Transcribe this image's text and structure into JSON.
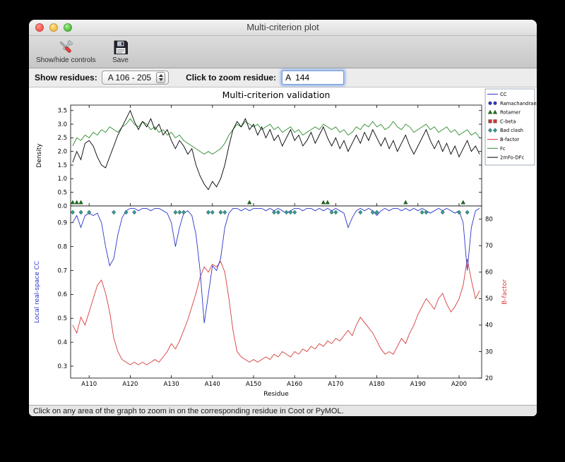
{
  "window": {
    "title": "Multi-criterion plot"
  },
  "toolbar": {
    "show_hide_label": "Show/hide controls",
    "save_label": "Save"
  },
  "controls": {
    "show_residues_label": "Show residues:",
    "range_value": "A 106 - 205",
    "zoom_label": "Click to zoom residue:",
    "zoom_value": "A  144"
  },
  "statusbar": {
    "text": "Click on any area of the graph to zoom in on the corresponding residue in Coot or PyMOL."
  },
  "colors": {
    "focus_ring": "#6f9fe8",
    "cc_line": "#2a35c8",
    "bfactor_line": "#d93b3b",
    "fc_line": "#2e8b2e",
    "map_line": "#000000",
    "clash_marker": "#2e9e96",
    "rotamer_marker": "#117711"
  },
  "chart_data": {
    "type": "line",
    "title": "Multi-criterion validation",
    "xlabel": "Residue",
    "x_start": 106,
    "xlim": [
      105.5,
      205.5
    ],
    "x_ticks": [
      "A110",
      "A120",
      "A130",
      "A140",
      "A150",
      "A160",
      "A170",
      "A180",
      "A190",
      "A200"
    ],
    "x_tick_values": [
      110,
      120,
      130,
      140,
      150,
      160,
      170,
      180,
      190,
      200
    ],
    "top_panel": {
      "ylabel": "Density",
      "ylim": [
        0.0,
        3.7
      ],
      "yticks": [
        0.0,
        0.5,
        1.0,
        1.5,
        2.0,
        2.5,
        3.0,
        3.5
      ],
      "series": [
        {
          "name": "Fc",
          "color": "#2e8b2e",
          "values": [
            2.2,
            2.5,
            2.4,
            2.6,
            2.5,
            2.7,
            2.6,
            2.8,
            2.7,
            2.9,
            2.8,
            2.7,
            2.9,
            3.0,
            3.2,
            3.0,
            2.9,
            3.1,
            3.0,
            2.8,
            2.9,
            2.7,
            2.8,
            2.6,
            2.7,
            2.5,
            2.6,
            2.4,
            2.3,
            2.2,
            2.1,
            2.0,
            1.9,
            2.0,
            1.9,
            2.0,
            2.1,
            2.3,
            2.6,
            2.8,
            3.0,
            2.9,
            3.1,
            3.0,
            2.9,
            3.0,
            2.8,
            2.9,
            3.0,
            2.8,
            2.9,
            2.7,
            2.8,
            2.9,
            2.7,
            2.8,
            2.6,
            2.7,
            2.8,
            2.9,
            2.8,
            3.0,
            2.9,
            2.8,
            2.9,
            2.7,
            2.8,
            2.6,
            2.7,
            2.9,
            2.8,
            3.0,
            2.9,
            3.1,
            2.9,
            3.0,
            2.8,
            2.9,
            3.1,
            2.9,
            2.8,
            3.0,
            2.9,
            2.7,
            2.8,
            2.9,
            3.0,
            2.8,
            2.9,
            2.7,
            2.8,
            2.9,
            2.7,
            2.8,
            2.6,
            2.7,
            2.8,
            2.6,
            2.7,
            2.5
          ]
        },
        {
          "name": "2mFo-DFc",
          "color": "#000000",
          "values": [
            1.6,
            2.0,
            1.7,
            2.3,
            2.4,
            2.2,
            1.8,
            1.5,
            1.4,
            1.8,
            2.2,
            2.6,
            2.9,
            3.2,
            3.5,
            3.1,
            2.8,
            3.1,
            2.9,
            3.2,
            2.8,
            3.0,
            2.6,
            2.8,
            2.4,
            2.1,
            2.4,
            2.2,
            1.9,
            2.1,
            1.5,
            1.1,
            0.8,
            0.6,
            0.9,
            0.7,
            1.0,
            1.5,
            2.2,
            2.8,
            3.1,
            2.9,
            3.2,
            2.8,
            3.0,
            2.6,
            2.9,
            2.5,
            2.8,
            2.4,
            2.6,
            2.2,
            2.5,
            2.8,
            2.4,
            2.6,
            2.2,
            2.4,
            2.7,
            2.3,
            2.6,
            2.9,
            2.5,
            2.2,
            2.5,
            2.1,
            2.4,
            2.0,
            2.3,
            2.6,
            2.3,
            2.7,
            2.4,
            2.8,
            2.5,
            2.2,
            2.5,
            2.1,
            2.4,
            2.0,
            2.3,
            2.6,
            2.2,
            1.9,
            2.2,
            2.5,
            2.8,
            2.4,
            2.1,
            2.4,
            2.0,
            2.3,
            1.9,
            2.2,
            1.8,
            2.1,
            2.4,
            2.0,
            2.2,
            1.9
          ]
        }
      ],
      "markers": [
        {
          "name": "Rotamer",
          "shape": "triangle",
          "color": "#117711",
          "residues": [
            106,
            107,
            108,
            149,
            167,
            168,
            187,
            201
          ]
        }
      ]
    },
    "bottom_panel": {
      "ylabel_left": "Local real-space CC",
      "ylabel_left_color": "#2a35c8",
      "ylim_left": [
        0.25,
        0.97
      ],
      "yticks_left": [
        0.9,
        0.8,
        0.7,
        0.6,
        0.5,
        0.4,
        0.3
      ],
      "ylabel_right": "B-factor",
      "ylabel_right_color": "#d93b3b",
      "ylim_right": [
        20,
        85
      ],
      "yticks_right": [
        80,
        70,
        60,
        50,
        40,
        30,
        20
      ],
      "series_left": [
        {
          "name": "CC",
          "color": "#2a35c8",
          "values": [
            0.9,
            0.93,
            0.88,
            0.93,
            0.94,
            0.93,
            0.94,
            0.9,
            0.8,
            0.72,
            0.75,
            0.85,
            0.92,
            0.95,
            0.96,
            0.96,
            0.95,
            0.96,
            0.96,
            0.95,
            0.96,
            0.96,
            0.95,
            0.94,
            0.9,
            0.8,
            0.88,
            0.94,
            0.95,
            0.93,
            0.85,
            0.7,
            0.48,
            0.6,
            0.72,
            0.7,
            0.75,
            0.88,
            0.94,
            0.96,
            0.96,
            0.95,
            0.96,
            0.95,
            0.96,
            0.96,
            0.96,
            0.95,
            0.96,
            0.95,
            0.96,
            0.95,
            0.94,
            0.95,
            0.96,
            0.96,
            0.95,
            0.96,
            0.96,
            0.95,
            0.96,
            0.95,
            0.96,
            0.95,
            0.96,
            0.95,
            0.94,
            0.88,
            0.92,
            0.95,
            0.96,
            0.95,
            0.96,
            0.95,
            0.93,
            0.95,
            0.96,
            0.95,
            0.96,
            0.96,
            0.95,
            0.96,
            0.95,
            0.96,
            0.95,
            0.96,
            0.95,
            0.94,
            0.95,
            0.96,
            0.95,
            0.96,
            0.95,
            0.94,
            0.95,
            0.9,
            0.7,
            0.88,
            0.95,
            0.96
          ]
        }
      ],
      "series_right": [
        {
          "name": "B-factor",
          "color": "#d93b3b",
          "values": [
            40,
            37,
            43,
            40,
            45,
            50,
            55,
            57,
            52,
            45,
            35,
            30,
            27,
            26,
            25,
            26,
            25,
            26,
            25,
            26,
            27,
            26,
            28,
            30,
            33,
            31,
            34,
            38,
            42,
            47,
            52,
            58,
            62,
            60,
            63,
            62,
            64,
            60,
            50,
            38,
            30,
            28,
            27,
            26,
            27,
            26,
            27,
            28,
            27,
            29,
            28,
            30,
            29,
            28,
            30,
            29,
            31,
            30,
            32,
            31,
            33,
            32,
            34,
            33,
            35,
            34,
            36,
            38,
            36,
            40,
            43,
            41,
            39,
            37,
            34,
            31,
            29,
            30,
            29,
            32,
            35,
            33,
            37,
            40,
            44,
            47,
            50,
            48,
            46,
            50,
            52,
            48,
            45,
            47,
            50,
            55,
            65,
            57,
            50,
            53
          ]
        }
      ],
      "markers": [
        {
          "name": "Bad clash",
          "shape": "diamond",
          "color": "#2e9e96",
          "residues": [
            106,
            108,
            110,
            116,
            119,
            121,
            131,
            132,
            133,
            139,
            140,
            142,
            143,
            155,
            156,
            158,
            159,
            160,
            169,
            170,
            176,
            179,
            180,
            191,
            192,
            196,
            200,
            202
          ]
        }
      ]
    },
    "legend": [
      {
        "label": "CC",
        "type": "line",
        "color": "#2a35c8"
      },
      {
        "label": "Ramachandran",
        "type": "marker",
        "shape": "circle",
        "color": "#2a35c8"
      },
      {
        "label": "Rotamer",
        "type": "marker",
        "shape": "triangle",
        "color": "#117711"
      },
      {
        "label": "C-beta",
        "type": "marker",
        "shape": "square",
        "color": "#cc3333"
      },
      {
        "label": "Bad clash",
        "type": "marker",
        "shape": "diamond",
        "color": "#2e9e96"
      },
      {
        "label": "B-factor",
        "type": "line",
        "color": "#d93b3b"
      },
      {
        "label": "Fc",
        "type": "line",
        "color": "#2e8b2e"
      },
      {
        "label": "2mFo-DFc",
        "type": "line",
        "color": "#000000"
      }
    ]
  }
}
